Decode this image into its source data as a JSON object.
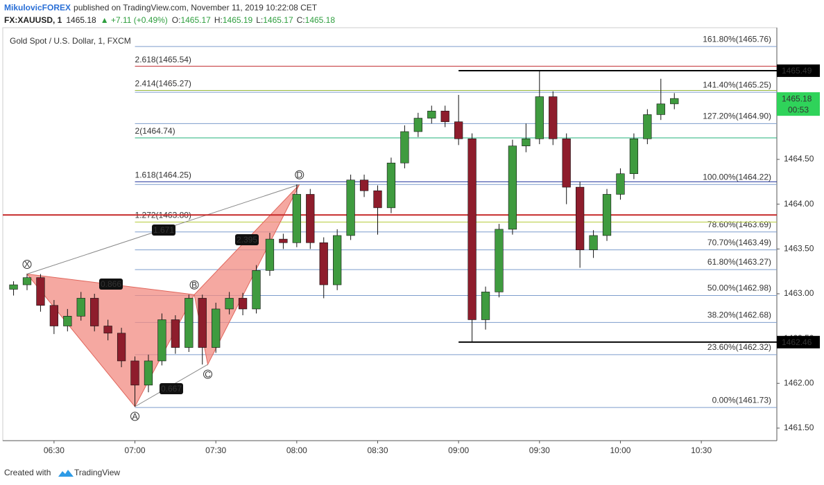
{
  "header": {
    "publisher": "MikulovicFOREX",
    "published": "published on TradingView.com, November 11, 2019 10:22:08 CET",
    "symbol": "FX:XAUUSD, 1",
    "last": "1465.18",
    "change": "▲ +7.11 (+0.49%)",
    "ohlc": [
      {
        "label": "O:",
        "value": "1465.17"
      },
      {
        "label": "H:",
        "value": "1465.19"
      },
      {
        "label": "L:",
        "value": "1465.17"
      },
      {
        "label": "C:",
        "value": "1465.18"
      }
    ]
  },
  "footer": {
    "created": "Created with",
    "brand": "TradingView"
  },
  "chart_data": {
    "type": "candlestick",
    "title": "Gold Spot / U.S. Dollar, 1, FXCM",
    "x": [
      "06:15",
      "06:20",
      "06:25",
      "06:30",
      "06:35",
      "06:40",
      "06:45",
      "06:50",
      "06:55",
      "07:00",
      "07:05",
      "07:10",
      "07:15",
      "07:20",
      "07:25",
      "07:30",
      "07:35",
      "07:40",
      "07:45",
      "07:50",
      "07:55",
      "08:00",
      "08:05",
      "08:10",
      "08:15",
      "08:20",
      "08:25",
      "08:30",
      "08:35",
      "08:40",
      "08:45",
      "08:50",
      "08:55",
      "09:00",
      "09:05",
      "09:10",
      "09:15",
      "09:20",
      "09:25",
      "09:30",
      "09:35",
      "09:40",
      "09:45",
      "09:50",
      "09:55",
      "10:00",
      "10:05",
      "10:10",
      "10:15",
      "10:20"
    ],
    "open": [
      1463.05,
      1463.1,
      1463.18,
      1462.87,
      1462.64,
      1462.75,
      1462.95,
      1462.64,
      1462.56,
      1462.25,
      1461.98,
      1462.25,
      1462.71,
      1462.4,
      1462.95,
      1462.4,
      1462.83,
      1462.95,
      1462.83,
      1463.26,
      1463.61,
      1463.57,
      1464.11,
      1463.57,
      1463.1,
      1463.65,
      1464.27,
      1464.15,
      1463.96,
      1464.46,
      1464.81,
      1464.96,
      1465.04,
      1464.92,
      1464.73,
      1462.71,
      1463.02,
      1463.72,
      1464.65,
      1464.73,
      1465.2,
      1464.73,
      1464.19,
      1463.49,
      1463.65,
      1464.11,
      1464.34,
      1464.73,
      1465.0,
      1465.12
    ],
    "high": [
      1463.14,
      1463.22,
      1463.22,
      1462.93,
      1462.83,
      1463.02,
      1463.0,
      1462.71,
      1462.62,
      1462.3,
      1462.32,
      1462.78,
      1462.76,
      1462.99,
      1462.99,
      1462.9,
      1463.02,
      1463.01,
      1463.32,
      1463.68,
      1463.67,
      1464.22,
      1464.17,
      1463.63,
      1463.72,
      1464.33,
      1464.33,
      1464.21,
      1464.52,
      1464.88,
      1465.02,
      1465.1,
      1465.1,
      1465.22,
      1464.79,
      1463.08,
      1463.78,
      1464.72,
      1464.9,
      1465.49,
      1465.26,
      1464.79,
      1464.25,
      1463.71,
      1464.17,
      1464.4,
      1464.79,
      1465.06,
      1465.4,
      1465.24
    ],
    "low": [
      1462.98,
      1463.04,
      1462.8,
      1462.55,
      1462.58,
      1462.7,
      1462.58,
      1462.48,
      1462.18,
      1461.74,
      1461.9,
      1462.2,
      1462.33,
      1462.35,
      1462.21,
      1462.34,
      1462.77,
      1462.76,
      1462.78,
      1463.2,
      1463.5,
      1463.52,
      1463.5,
      1462.95,
      1463.04,
      1463.6,
      1464.08,
      1463.66,
      1463.9,
      1464.4,
      1464.75,
      1464.9,
      1464.86,
      1464.66,
      1462.46,
      1462.6,
      1462.96,
      1463.66,
      1464.58,
      1464.67,
      1464.66,
      1464.0,
      1463.29,
      1463.4,
      1463.59,
      1464.05,
      1464.28,
      1464.67,
      1464.94,
      1465.06
    ],
    "close": [
      1463.1,
      1463.18,
      1462.87,
      1462.64,
      1462.75,
      1462.95,
      1462.64,
      1462.56,
      1462.25,
      1461.98,
      1462.25,
      1462.71,
      1462.4,
      1462.95,
      1462.4,
      1462.83,
      1462.95,
      1462.83,
      1463.26,
      1463.61,
      1463.57,
      1464.11,
      1463.57,
      1463.1,
      1463.65,
      1464.27,
      1464.15,
      1463.96,
      1464.46,
      1464.81,
      1464.96,
      1465.04,
      1464.92,
      1464.73,
      1462.71,
      1463.02,
      1463.72,
      1464.65,
      1464.73,
      1465.2,
      1464.73,
      1464.19,
      1463.49,
      1463.65,
      1464.11,
      1464.34,
      1464.73,
      1465.0,
      1465.12,
      1465.18
    ],
    "up_color": "#3f9b3f",
    "down_color": "#8e1d2c",
    "xlim": [
      "06:11",
      "10:58"
    ],
    "xticks": [
      "06:30",
      "07:00",
      "07:30",
      "08:00",
      "08:30",
      "09:00",
      "09:30",
      "10:00",
      "10:30"
    ],
    "ylim": [
      1461.36,
      1465.97
    ],
    "yticks": [
      {
        "value": 1461.5,
        "label": "1461.50"
      },
      {
        "value": 1462,
        "label": "1462.00"
      },
      {
        "value": 1462.5,
        "label": "1462.50"
      },
      {
        "value": 1463,
        "label": "1463.00"
      },
      {
        "value": 1463.5,
        "label": "1463.50"
      },
      {
        "value": 1464,
        "label": "1464.00"
      },
      {
        "value": 1464.5,
        "label": "1464.50"
      }
    ],
    "fib_right": [
      {
        "value": 1465.76,
        "label": "161.80%(1465.76)"
      },
      {
        "value": 1465.25,
        "label": "141.40%(1465.25)"
      },
      {
        "value": 1464.9,
        "label": "127.20%(1464.90)"
      },
      {
        "value": 1464.22,
        "label": "100.00%(1464.22)"
      },
      {
        "value": 1463.69,
        "label": "78.60%(1463.69)"
      },
      {
        "value": 1463.49,
        "label": "70.70%(1463.49)"
      },
      {
        "value": 1463.27,
        "label": "61.80%(1463.27)"
      },
      {
        "value": 1462.98,
        "label": "50.00%(1462.98)"
      },
      {
        "value": 1462.68,
        "label": "38.20%(1462.68)"
      },
      {
        "value": 1462.32,
        "label": "23.60%(1462.32)"
      },
      {
        "value": 1461.73,
        "label": "0.00%(1461.73)"
      }
    ],
    "fib_right_color": "#1f4e9a",
    "fib_left": [
      {
        "value": 1465.54,
        "label": "2.618(1465.54)",
        "color": "#c0282d"
      },
      {
        "value": 1465.27,
        "label": "2.414(1465.27)",
        "color": "#95b73a"
      },
      {
        "value": 1464.74,
        "label": "2(1464.74)",
        "color": "#22b07a"
      },
      {
        "value": 1464.25,
        "label": "1.618(1464.25)",
        "color": "#23349c"
      },
      {
        "value": 1463.8,
        "label": "1.272(1463.80)",
        "color": "#b5cc3c"
      }
    ],
    "hlines": [
      {
        "value": 1465.49,
        "color": "#000000",
        "from": "09:00"
      },
      {
        "value": 1462.46,
        "color": "#000000",
        "from": "09:00"
      },
      {
        "value": 1463.88,
        "color": "#c62828",
        "from": "06:11"
      }
    ],
    "pattern": [
      {
        "name": "X",
        "x": "06:20",
        "value": 1463.22
      },
      {
        "name": "A",
        "x": "07:00",
        "value": 1461.74
      },
      {
        "name": "B",
        "x": "07:22",
        "value": 1462.99
      },
      {
        "name": "C",
        "x": "07:27",
        "value": 1462.21
      },
      {
        "name": "D",
        "x": "08:01",
        "value": 1464.22
      }
    ],
    "pattern_color": "#f28b82",
    "ratios": [
      0.866,
      1.671,
      2.395,
      0.667
    ],
    "last": {
      "value": 1465.18,
      "countdown": "00:53",
      "color": "#2fd35a"
    }
  }
}
